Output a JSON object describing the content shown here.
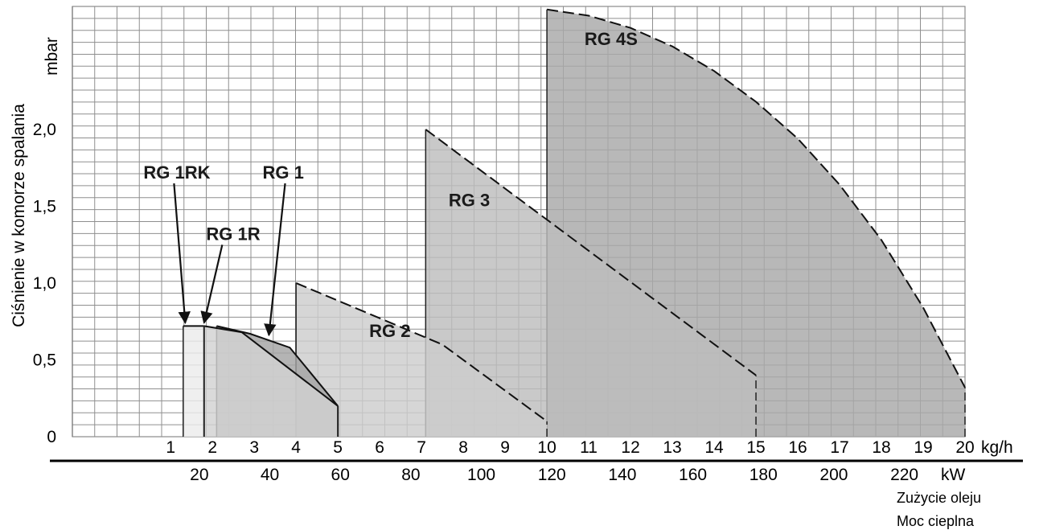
{
  "chart_data": {
    "type": "area",
    "title": "",
    "ylabel": "Ciśnienie w komorze spalania",
    "yunit": "mbar",
    "ylim": [
      0,
      2.8
    ],
    "yticks": [
      {
        "v": 0,
        "label": "0"
      },
      {
        "v": 0.5,
        "label": "0,5"
      },
      {
        "v": 1.0,
        "label": "1,0"
      },
      {
        "v": 1.5,
        "label": "1,5"
      },
      {
        "v": 2.0,
        "label": "2,0"
      }
    ],
    "xlim": [
      -1.35,
      20
    ],
    "x_kgh": {
      "unit": "kg/h",
      "ticks": [
        "1",
        "2",
        "3",
        "4",
        "5",
        "6",
        "7",
        "8",
        "9",
        "10",
        "11",
        "12",
        "13",
        "14",
        "15",
        "16",
        "17",
        "18",
        "19",
        "20"
      ]
    },
    "x_kw": {
      "unit": "kW",
      "kw_per_kgh": 11.86,
      "ticks": [
        "20",
        "40",
        "60",
        "80",
        "100",
        "120",
        "140",
        "160",
        "180",
        "200",
        "220"
      ]
    },
    "captions": [
      "Zużycie  oleju",
      "Moc cieplna"
    ],
    "series": [
      {
        "name": "RG 4S",
        "color": "#a8a8a8",
        "dashed": true,
        "points": [
          [
            10,
            0
          ],
          [
            10,
            2.78
          ],
          [
            11,
            2.74
          ],
          [
            12,
            2.66
          ],
          [
            13,
            2.54
          ],
          [
            14,
            2.38
          ],
          [
            15,
            2.18
          ],
          [
            16,
            1.94
          ],
          [
            17,
            1.64
          ],
          [
            18,
            1.28
          ],
          [
            19,
            0.84
          ],
          [
            20,
            0.32
          ],
          [
            20,
            0
          ]
        ],
        "label_at": [
          10.9,
          2.55
        ]
      },
      {
        "name": "RG 3",
        "color": "#bdbdbd",
        "dashed": true,
        "points": [
          [
            7.1,
            0
          ],
          [
            7.1,
            2.0
          ],
          [
            15,
            0.4
          ],
          [
            15,
            0
          ]
        ],
        "label_at": [
          7.65,
          1.5
        ]
      },
      {
        "name": "RG 2",
        "color": "#cdcdcd",
        "dashed": true,
        "points": [
          [
            4,
            0
          ],
          [
            4,
            1.0
          ],
          [
            7.5,
            0.6
          ],
          [
            10,
            0.1
          ],
          [
            10,
            0
          ]
        ],
        "label_at": [
          5.75,
          0.65
        ]
      },
      {
        "name": "RG 1",
        "color": "#a4a4a4",
        "dashed": false,
        "points": [
          [
            2.1,
            0
          ],
          [
            2.1,
            0.72
          ],
          [
            2.9,
            0.67
          ],
          [
            3.85,
            0.58
          ],
          [
            5,
            0.2
          ],
          [
            5,
            0
          ]
        ],
        "label_at": [
          3.2,
          1.68
        ],
        "arrow_tip": [
          3.35,
          0.64
        ]
      },
      {
        "name": "RG 1R",
        "color": "#d2d2d2",
        "dashed": false,
        "points": [
          [
            1.8,
            0
          ],
          [
            1.8,
            0.72
          ],
          [
            2.7,
            0.68
          ],
          [
            5,
            0.2
          ],
          [
            5,
            0
          ]
        ],
        "label_at": [
          1.85,
          1.28
        ],
        "arrow_tip": [
          1.8,
          0.72
        ]
      },
      {
        "name": "RG 1RK",
        "color": "#ececec",
        "dashed": false,
        "points": [
          [
            1.3,
            0
          ],
          [
            1.3,
            0.72
          ],
          [
            1.8,
            0.72
          ],
          [
            1.8,
            0
          ]
        ],
        "label_at": [
          0.35,
          1.68
        ],
        "arrow_tip": [
          1.35,
          0.72
        ]
      }
    ]
  }
}
